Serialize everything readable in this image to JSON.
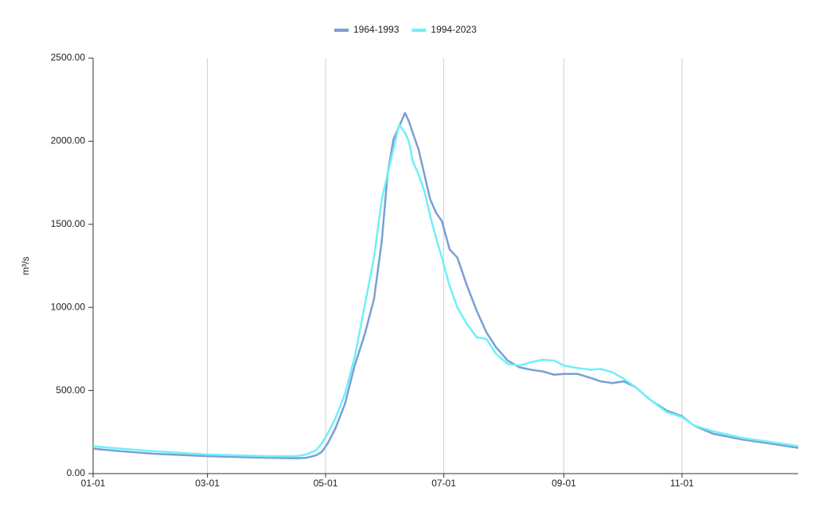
{
  "chart_data": {
    "type": "line",
    "y_label": "m³/s",
    "x": [
      0,
      14,
      31,
      59,
      90,
      105,
      110,
      115,
      118,
      121,
      125,
      130,
      135,
      140,
      145,
      149,
      152,
      155,
      158,
      161,
      163,
      165,
      168,
      171,
      174,
      177,
      180,
      184,
      188,
      193,
      198,
      203,
      208,
      214,
      220,
      226,
      232,
      238,
      243,
      250,
      257,
      262,
      268,
      274,
      280,
      288,
      296,
      304,
      310,
      320,
      335,
      350,
      364
    ],
    "xlim": [
      0,
      364
    ],
    "xticks": [
      {
        "value": 0,
        "label": "01-01"
      },
      {
        "value": 59,
        "label": "03-01"
      },
      {
        "value": 120,
        "label": "05-01"
      },
      {
        "value": 181,
        "label": "07-01"
      },
      {
        "value": 243,
        "label": "09-01"
      },
      {
        "value": 304,
        "label": "11-01"
      }
    ],
    "ylim": [
      0,
      2500
    ],
    "yticks": [
      {
        "value": 0,
        "label": "0.00"
      },
      {
        "value": 500,
        "label": "500.00"
      },
      {
        "value": 1000,
        "label": "1000.00"
      },
      {
        "value": 1500,
        "label": "1500.00"
      },
      {
        "value": 2000,
        "label": "2000.00"
      },
      {
        "value": 2500,
        "label": "2500.00"
      }
    ],
    "grid": true,
    "legend": "top",
    "series": [
      {
        "name": "1964-1993",
        "color": "#7b9fd4",
        "values": [
          150,
          135,
          120,
          105,
          95,
          92,
          95,
          110,
          130,
          180,
          270,
          420,
          650,
          830,
          1050,
          1400,
          1800,
          2010,
          2090,
          2170,
          2120,
          2050,
          1950,
          1800,
          1650,
          1570,
          1520,
          1350,
          1300,
          1130,
          980,
          850,
          760,
          680,
          640,
          625,
          615,
          595,
          600,
          600,
          575,
          555,
          545,
          555,
          520,
          440,
          380,
          345,
          290,
          240,
          205,
          180,
          155
        ]
      },
      {
        "name": "1994-2023",
        "color": "#6ff0f8",
        "values": [
          165,
          150,
          135,
          115,
          105,
          105,
          115,
          140,
          180,
          240,
          330,
          480,
          700,
          1000,
          1300,
          1650,
          1800,
          1950,
          2100,
          2050,
          2000,
          1880,
          1800,
          1700,
          1550,
          1420,
          1300,
          1130,
          1000,
          900,
          820,
          810,
          720,
          660,
          650,
          670,
          685,
          680,
          650,
          635,
          625,
          630,
          610,
          570,
          520,
          440,
          370,
          340,
          290,
          255,
          215,
          190,
          165
        ]
      }
    ]
  }
}
